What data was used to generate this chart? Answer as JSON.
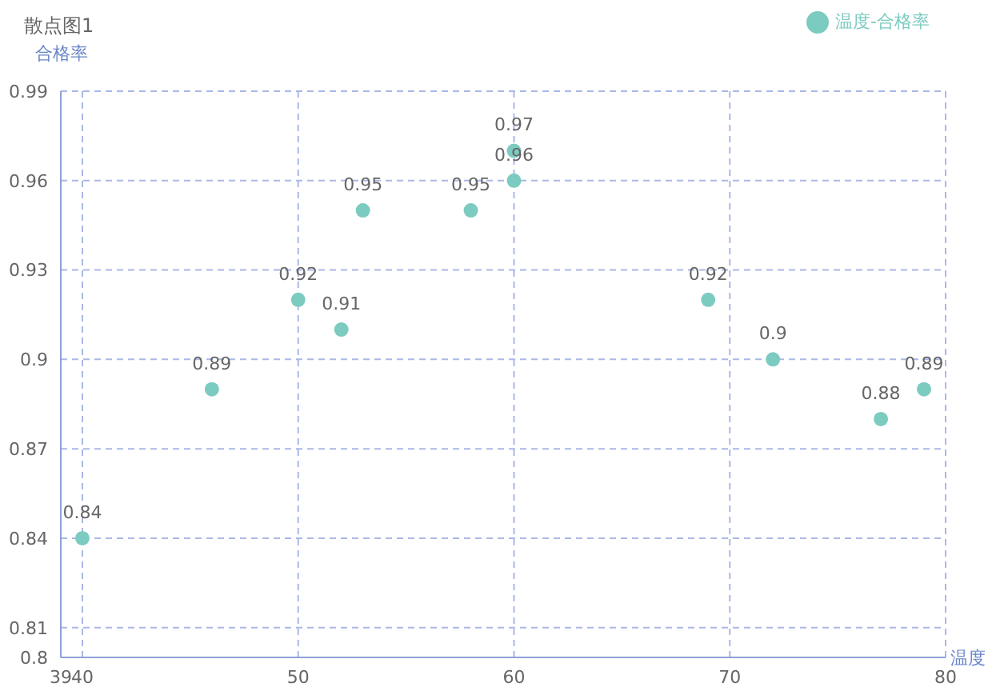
{
  "chart_data": {
    "type": "scatter",
    "title": "散点图1",
    "xlabel": "温度",
    "ylabel": "合格率",
    "x": [
      40,
      46,
      50,
      52,
      53,
      58,
      60,
      60,
      69,
      72,
      77,
      79
    ],
    "series": [
      {
        "name": "温度-合格率",
        "color": "#7ccbc0",
        "values": [
          0.84,
          0.89,
          0.92,
          0.91,
          0.95,
          0.95,
          0.97,
          0.96,
          0.92,
          0.9,
          0.88,
          0.89
        ]
      }
    ],
    "xlim": [
      39,
      80
    ],
    "xticks": [
      39,
      40,
      50,
      60,
      70,
      80
    ],
    "ylim": [
      0.8,
      0.99
    ],
    "yticks": [
      0.8,
      0.81,
      0.84,
      0.87,
      0.9,
      0.93,
      0.96,
      0.99
    ],
    "grid": true,
    "legend": "top right",
    "marker": "circle",
    "data_labels": true
  }
}
